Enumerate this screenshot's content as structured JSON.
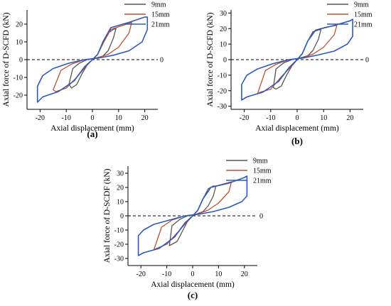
{
  "chart_data": [
    {
      "type": "line",
      "panel_label": "(a)",
      "xlabel": "Axial displacement (mm)",
      "ylabel": "Axial force of D-SCFD (kN)",
      "xlim": [
        -25,
        25
      ],
      "ylim": [
        -28,
        28
      ],
      "xticks": [
        -20,
        -10,
        0,
        10,
        20
      ],
      "yticks": [
        -20,
        -10,
        0,
        10,
        20
      ],
      "zero_line_label": "0",
      "grid": false,
      "legend_position": "top-right",
      "series": [
        {
          "name": "9mm",
          "color": "#555555",
          "x": [
            0,
            2,
            4,
            6,
            8,
            9,
            8,
            6,
            4,
            1,
            -2,
            -5,
            -7.5,
            -9,
            -8,
            -6,
            -4,
            -2,
            0
          ],
          "y": [
            0,
            3,
            9,
            15,
            17,
            17.5,
            12,
            5,
            2,
            0.8,
            0,
            -2,
            -5,
            -14,
            -16,
            -14,
            -8,
            -3,
            0
          ]
        },
        {
          "name": "15mm",
          "color": "#c0502c",
          "x": [
            0,
            2,
            4,
            7,
            11,
            15,
            14,
            10,
            6,
            2,
            -3,
            -8,
            -12,
            -15,
            -14,
            -10,
            -6,
            -2,
            0
          ],
          "y": [
            0,
            3,
            9,
            17,
            19,
            21,
            15,
            7,
            3,
            1,
            0,
            -2.5,
            -6,
            -17,
            -18,
            -16,
            -10,
            -3,
            0
          ]
        },
        {
          "name": "21mm",
          "color": "#2b59c3",
          "x": [
            0,
            2,
            4,
            7,
            14,
            20,
            21,
            21,
            19,
            14,
            8,
            2,
            -3,
            -9,
            -15,
            -19,
            -21,
            -21,
            -19,
            -13,
            -7,
            -3,
            0
          ],
          "y": [
            0,
            3,
            10,
            18,
            21,
            24,
            24,
            17,
            10,
            5,
            2.5,
            0.8,
            0,
            -2,
            -5,
            -9,
            -15,
            -24,
            -21,
            -18,
            -12,
            -4,
            0
          ]
        }
      ]
    },
    {
      "type": "line",
      "panel_label": "(b)",
      "xlabel": "Axial displacement (mm)",
      "ylabel": "Axial force of D-SCFD (kN)",
      "xlim": [
        -25,
        25
      ],
      "ylim": [
        -32,
        32
      ],
      "xticks": [
        -20,
        -10,
        0,
        10,
        20
      ],
      "yticks": [
        -30,
        -20,
        -10,
        0,
        10,
        20,
        30
      ],
      "zero_line_label": "0",
      "grid": false,
      "legend_position": "top-right",
      "series": [
        {
          "name": "9mm",
          "color": "#555555",
          "x": [
            0,
            2,
            4,
            6,
            8,
            9,
            8,
            6,
            4,
            1,
            -2,
            -5,
            -8,
            -9,
            -8,
            -6,
            -4,
            -2,
            0
          ],
          "y": [
            0,
            4,
            12,
            18,
            19,
            19.5,
            13,
            6,
            2.5,
            1,
            0,
            -2,
            -6,
            -18,
            -19,
            -17,
            -10,
            -4,
            0
          ]
        },
        {
          "name": "15mm",
          "color": "#c0502c",
          "x": [
            0,
            2,
            4,
            7,
            11,
            15,
            14,
            10,
            6,
            2,
            -3,
            -8,
            -12,
            -15,
            -14,
            -10,
            -6,
            -2,
            0
          ],
          "y": [
            0,
            4,
            12,
            19,
            21,
            22,
            16,
            8,
            3.5,
            1.2,
            0,
            -3,
            -7,
            -22,
            -21,
            -19,
            -11,
            -4,
            0
          ]
        },
        {
          "name": "21mm",
          "color": "#2b59c3",
          "x": [
            0,
            2,
            4,
            7,
            14,
            20,
            21,
            21,
            19,
            14,
            8,
            2,
            -3,
            -9,
            -15,
            -19,
            -21,
            -21,
            -19,
            -13,
            -7,
            -3,
            0
          ],
          "y": [
            0,
            4,
            12,
            19,
            22,
            25,
            26,
            15,
            10,
            5.5,
            3,
            1,
            0,
            -2.5,
            -6,
            -10,
            -16,
            -26,
            -24,
            -21,
            -14,
            -5,
            0
          ]
        }
      ]
    },
    {
      "type": "line",
      "panel_label": "(c)",
      "xlabel": "Axial displacement (mm)",
      "ylabel": "Axial force of D-SCDF (kN)",
      "xlim": [
        -25,
        25
      ],
      "ylim": [
        -35,
        35
      ],
      "xticks": [
        -20,
        -10,
        0,
        10,
        20
      ],
      "yticks": [
        -30,
        -20,
        -10,
        0,
        10,
        20,
        30
      ],
      "zero_line_label": "0",
      "grid": false,
      "legend_position": "top-right",
      "series": [
        {
          "name": "9mm",
          "color": "#555555",
          "x": [
            0,
            2,
            4,
            6,
            8,
            9,
            8,
            6,
            4,
            1,
            -2,
            -5,
            -8,
            -9,
            -8,
            -6,
            -4,
            -2,
            0
          ],
          "y": [
            0,
            4,
            12,
            19,
            21,
            21,
            14,
            7,
            3,
            1,
            0,
            -2.5,
            -7,
            -21,
            -20,
            -18,
            -11,
            -4,
            0
          ]
        },
        {
          "name": "15mm",
          "color": "#c0502c",
          "x": [
            0,
            2,
            4,
            7,
            11,
            15,
            14,
            10,
            6,
            2,
            -3,
            -8,
            -12,
            -15,
            -14,
            -10,
            -6,
            -2,
            0
          ],
          "y": [
            0,
            4,
            12,
            20,
            22,
            24,
            17,
            9,
            4,
            1.3,
            0,
            -3,
            -8,
            -24,
            -23,
            -20,
            -12,
            -4,
            0
          ]
        },
        {
          "name": "21mm",
          "color": "#2b59c3",
          "x": [
            0,
            2,
            4,
            7,
            14,
            20,
            21,
            21,
            19,
            14,
            8,
            2,
            -3,
            -9,
            -15,
            -19,
            -21,
            -21,
            -19,
            -13,
            -7,
            -3,
            0
          ],
          "y": [
            0,
            4,
            12,
            20,
            23,
            27,
            28,
            14,
            10,
            6,
            3,
            1,
            0,
            -3,
            -6,
            -10,
            -14,
            -28,
            -26,
            -23,
            -15,
            -5,
            0
          ]
        }
      ]
    }
  ]
}
